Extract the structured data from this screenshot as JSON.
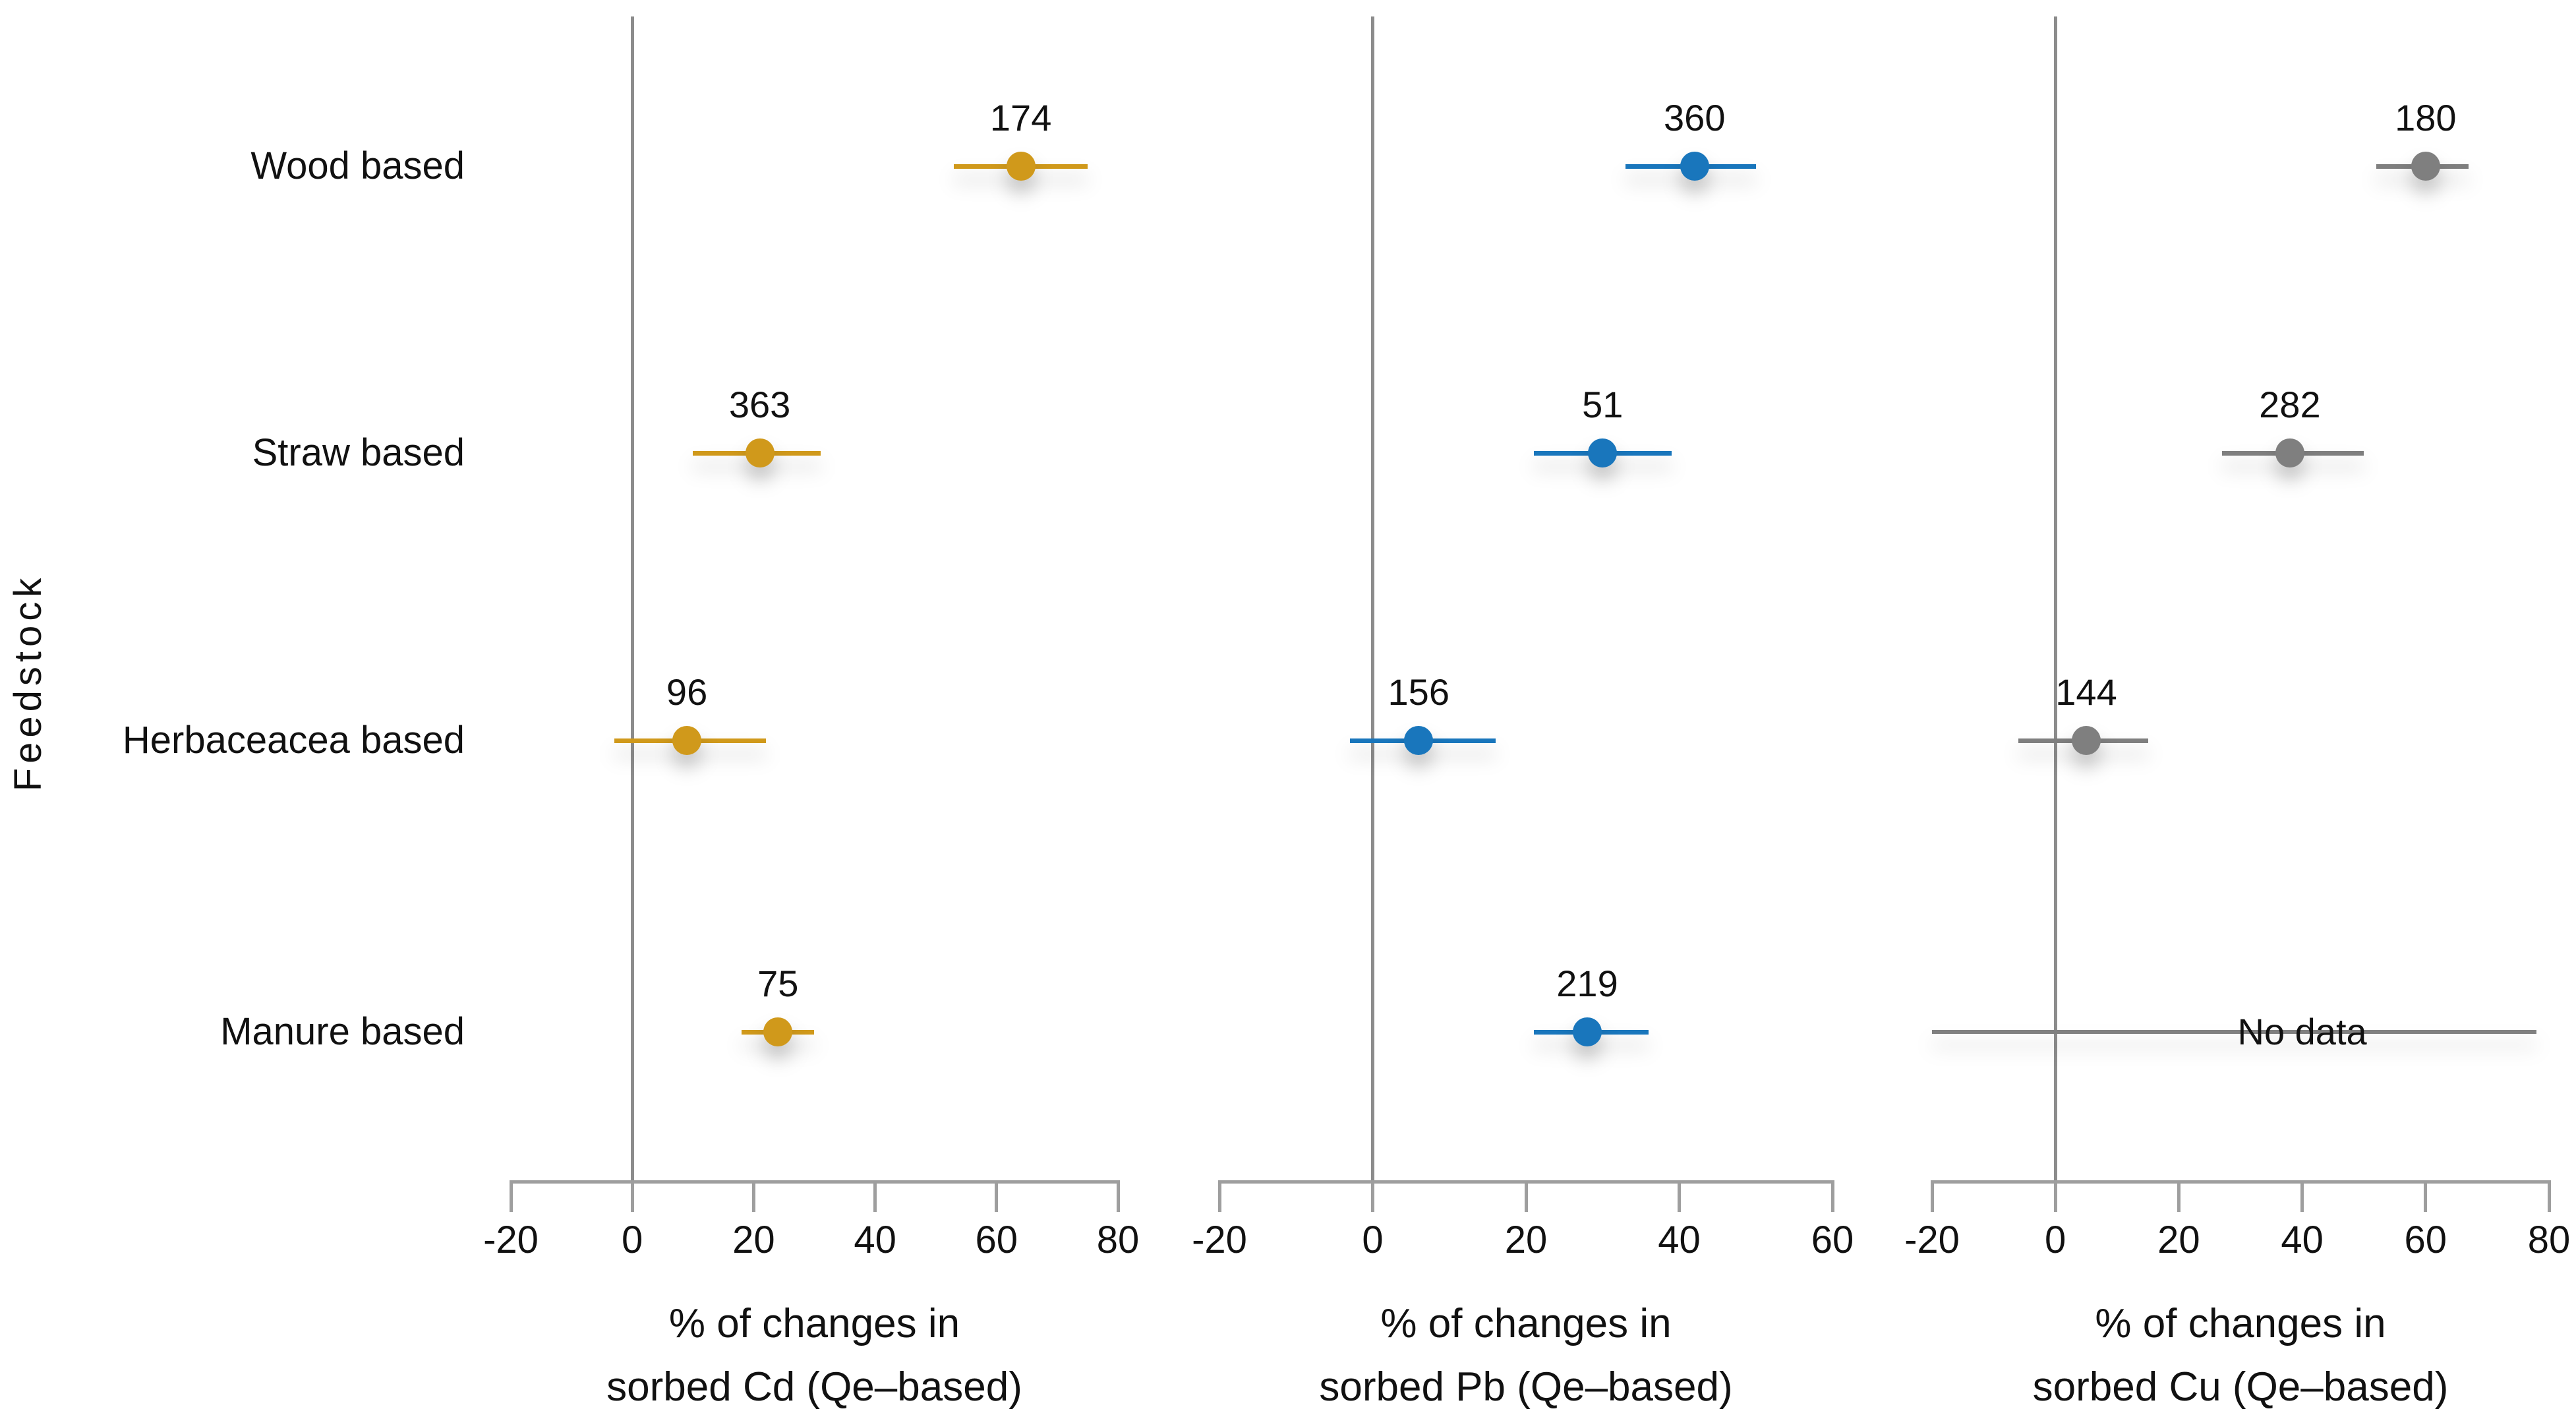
{
  "figure": {
    "y_axis_title": "Feedstock",
    "categories": [
      "Wood based",
      "Straw based",
      "Herbaceacea based",
      "Manure based"
    ],
    "colors": {
      "cd_series": "#D0991B",
      "pb_series": "#1976BC",
      "cu_series": "#7F7F7F",
      "axis_gray": "#9E9E9E",
      "zero_line_gray": "#8C8C8C",
      "no_data_line_gray": "#808080",
      "text": "#111111"
    }
  },
  "chart_data": [
    {
      "type": "scatter",
      "subtype": "dot-with-horizontal-error-bars",
      "title": "",
      "xlabel_lines": [
        "% of changes in",
        "sorbed Cd (Qe–based)"
      ],
      "ylabel": "Feedstock",
      "color": "#D0991B",
      "xlim": [
        -20,
        80
      ],
      "xticks": [
        -20,
        0,
        20,
        40,
        60,
        80
      ],
      "grid": "zero-line-only",
      "legend": "none",
      "categories": [
        "Wood based",
        "Straw based",
        "Herbaceacea based",
        "Manure based"
      ],
      "points": [
        {
          "category": "Wood based",
          "count_label": "174",
          "mean": 64,
          "ci_low": 53,
          "ci_high": 75
        },
        {
          "category": "Straw based",
          "count_label": "363",
          "mean": 21,
          "ci_low": 10,
          "ci_high": 31
        },
        {
          "category": "Herbaceacea based",
          "count_label": "96",
          "mean": 9,
          "ci_low": -3,
          "ci_high": 22
        },
        {
          "category": "Manure based",
          "count_label": "75",
          "mean": 24,
          "ci_low": 18,
          "ci_high": 30
        }
      ]
    },
    {
      "type": "scatter",
      "subtype": "dot-with-horizontal-error-bars",
      "title": "",
      "xlabel_lines": [
        "% of changes in",
        "sorbed Pb (Qe–based)"
      ],
      "ylabel": "Feedstock",
      "color": "#1976BC",
      "xlim": [
        -20,
        60
      ],
      "xticks": [
        -20,
        0,
        20,
        40,
        60
      ],
      "grid": "zero-line-only",
      "legend": "none",
      "categories": [
        "Wood based",
        "Straw based",
        "Herbaceacea based",
        "Manure based"
      ],
      "points": [
        {
          "category": "Wood based",
          "count_label": "360",
          "mean": 42,
          "ci_low": 33,
          "ci_high": 50
        },
        {
          "category": "Straw based",
          "count_label": "51",
          "mean": 30,
          "ci_low": 21,
          "ci_high": 39
        },
        {
          "category": "Herbaceacea based",
          "count_label": "156",
          "mean": 6,
          "ci_low": -3,
          "ci_high": 16
        },
        {
          "category": "Manure based",
          "count_label": "219",
          "mean": 28,
          "ci_low": 21,
          "ci_high": 36
        }
      ]
    },
    {
      "type": "scatter",
      "subtype": "dot-with-horizontal-error-bars",
      "title": "",
      "xlabel_lines": [
        "% of changes in",
        "sorbed Cu (Qe–based)"
      ],
      "ylabel": "Feedstock",
      "color": "#7F7F7F",
      "xlim": [
        -20,
        80
      ],
      "xticks": [
        -20,
        0,
        20,
        40,
        60,
        80
      ],
      "grid": "zero-line-only",
      "legend": "none",
      "categories": [
        "Wood based",
        "Straw based",
        "Herbaceacea based",
        "Manure based"
      ],
      "points": [
        {
          "category": "Wood based",
          "count_label": "180",
          "mean": 60,
          "ci_low": 52,
          "ci_high": 67
        },
        {
          "category": "Straw based",
          "count_label": "282",
          "mean": 38,
          "ci_low": 27,
          "ci_high": 50
        },
        {
          "category": "Herbaceacea based",
          "count_label": "144",
          "mean": 5,
          "ci_low": -6,
          "ci_high": 15
        },
        {
          "category": "Manure based",
          "no_data": true,
          "label": "No data",
          "line_low": -20,
          "line_high": 78,
          "label_x": 40
        }
      ]
    }
  ]
}
